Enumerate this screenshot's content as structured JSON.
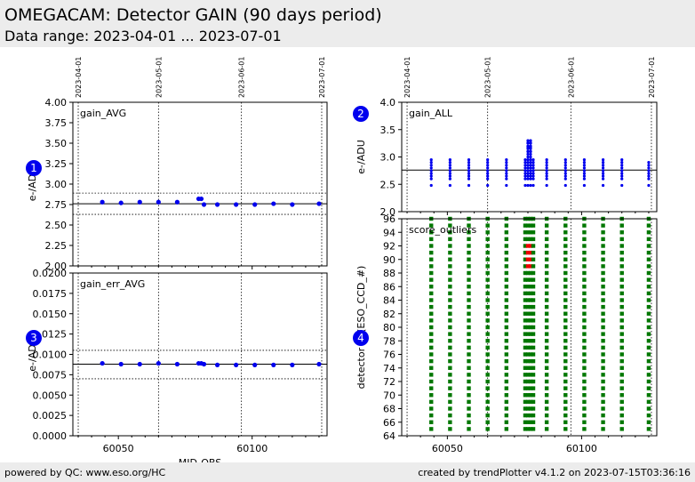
{
  "header": {
    "title": "OMEGACAM: Detector GAIN (90 days period)",
    "subtitle": "Data range: 2023-04-01 ... 2023-07-01"
  },
  "footer": {
    "left": "powered by QC: www.eso.org/HC",
    "right": "created by trendPlotter v4.1.2 on 2023-07-15T03:36:16"
  },
  "colors": {
    "points": "#0000ee",
    "good": "#007700",
    "outlier": "#ee0000",
    "badge": "#0000ee"
  },
  "chart_data": [
    {
      "id": "1",
      "type": "scatter",
      "panel_label": "gain_AVG",
      "ylabel": "e-/ADU",
      "xlim": [
        60033,
        60128
      ],
      "ylim": [
        2.0,
        4.0
      ],
      "yticks": [
        2.0,
        2.25,
        2.5,
        2.75,
        3.0,
        3.25,
        3.5,
        3.75,
        4.0
      ],
      "ytick_labels": [
        "2.00",
        "2.25",
        "2.50",
        "2.75",
        "3.00",
        "3.25",
        "3.50",
        "3.75",
        "4.00"
      ],
      "ref_line": 2.76,
      "limit_lines": [
        2.89,
        2.63
      ],
      "x": [
        60044,
        60051,
        60058,
        60065,
        60072,
        60080,
        60081,
        60082,
        60087,
        60094,
        60101,
        60108,
        60115,
        60125
      ],
      "y": [
        2.78,
        2.77,
        2.78,
        2.78,
        2.78,
        2.82,
        2.82,
        2.75,
        2.75,
        2.75,
        2.75,
        2.76,
        2.75,
        2.76
      ]
    },
    {
      "id": "2",
      "type": "scatter",
      "panel_label": "gain_ALL",
      "ylabel": "e-/ADU",
      "xlim": [
        60033,
        60128
      ],
      "ylim": [
        2.0,
        4.0
      ],
      "yticks": [
        2.0,
        2.5,
        3.0,
        3.5,
        4.0
      ],
      "ytick_labels": [
        "2.0",
        "2.5",
        "3.0",
        "3.5",
        "4.0"
      ],
      "ref_line": 2.76,
      "x_groups": [
        60044,
        60051,
        60058,
        60065,
        60072,
        60079,
        60080,
        60081,
        60082,
        60087,
        60094,
        60101,
        60108,
        60115,
        60125
      ],
      "y_top": [
        2.98,
        2.97,
        2.97,
        2.99,
        2.99,
        2.96,
        3.33,
        3.33,
        2.96,
        2.95,
        2.95,
        2.95,
        2.95,
        2.95,
        2.94
      ],
      "y_bottom": [
        2.6,
        2.6,
        2.6,
        2.6,
        2.6,
        2.6,
        2.6,
        2.6,
        2.6,
        2.6,
        2.6,
        2.6,
        2.6,
        2.6,
        2.6
      ],
      "y_low_outlier": 2.48
    },
    {
      "id": "3",
      "type": "scatter",
      "panel_label": "gain_err_AVG",
      "ylabel": "e-/ADU",
      "xlabel": "MJD-OBS",
      "xlim": [
        60033,
        60128
      ],
      "ylim": [
        0.0,
        0.02
      ],
      "yticks": [
        0.0,
        0.0025,
        0.005,
        0.0075,
        0.01,
        0.0125,
        0.015,
        0.0175,
        0.02
      ],
      "ytick_labels": [
        "0.0000",
        "0.0025",
        "0.0050",
        "0.0075",
        "0.0100",
        "0.0125",
        "0.0150",
        "0.0175",
        "0.0200"
      ],
      "ref_line": 0.0088,
      "limit_lines": [
        0.0105,
        0.007
      ],
      "x": [
        60044,
        60051,
        60058,
        60065,
        60072,
        60080,
        60081,
        60082,
        60087,
        60094,
        60101,
        60108,
        60115,
        60125
      ],
      "y": [
        0.0089,
        0.0088,
        0.0088,
        0.0089,
        0.0088,
        0.0089,
        0.0089,
        0.0088,
        0.0087,
        0.0087,
        0.0087,
        0.0087,
        0.0087,
        0.0088
      ]
    },
    {
      "id": "4",
      "type": "scatter",
      "panel_label": "score_outliers",
      "ylabel": "detector id (ESO_CCD_#)",
      "xlim": [
        60033,
        60128
      ],
      "ylim": [
        64,
        96
      ],
      "yticks": [
        64,
        66,
        68,
        70,
        72,
        74,
        76,
        78,
        80,
        82,
        84,
        86,
        88,
        90,
        92,
        94,
        96
      ],
      "ytick_labels": [
        "64",
        "66",
        "68",
        "70",
        "72",
        "74",
        "76",
        "78",
        "80",
        "82",
        "84",
        "86",
        "88",
        "90",
        "92",
        "94",
        "96"
      ],
      "x_groups": [
        60044,
        60051,
        60058,
        60065,
        60072,
        60079,
        60080,
        60081,
        60082,
        60087,
        60094,
        60101,
        60108,
        60115,
        60125
      ],
      "detectors": [
        65,
        96
      ],
      "outliers": [
        {
          "x": [
            60080,
            60081
          ],
          "detectors": [
            89,
            90,
            91,
            92
          ]
        }
      ]
    }
  ],
  "shared_x": {
    "tick_values": [
      60050,
      60100
    ],
    "tick_labels": [
      "60050",
      "60100"
    ],
    "date_lines": [
      60035,
      60065,
      60096,
      60126
    ],
    "date_labels": [
      "2023-04-01",
      "2023-05-01",
      "2023-06-01",
      "2023-07-01"
    ]
  }
}
